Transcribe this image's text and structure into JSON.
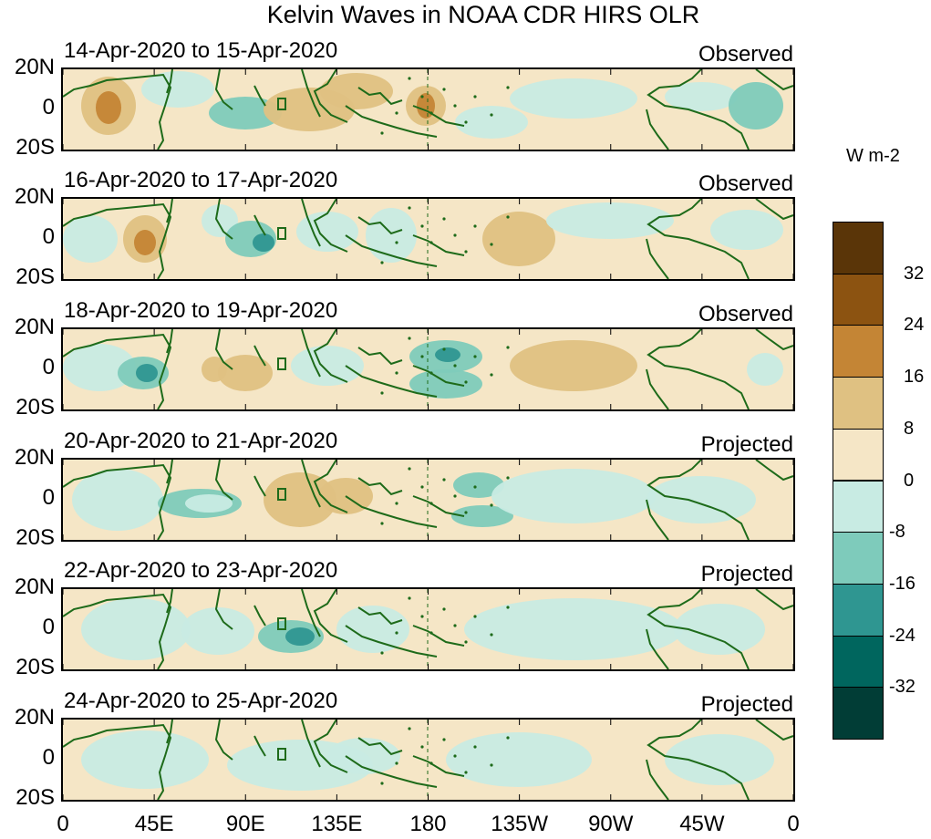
{
  "title": "Kelvin Waves in NOAA CDR HIRS OLR",
  "lat_labels": [
    "20N",
    "0",
    "20S"
  ],
  "lon_labels": [
    "0",
    "45E",
    "90E",
    "135E",
    "180",
    "135W",
    "90W",
    "45W",
    "0"
  ],
  "colorbar": {
    "units": "W m-2",
    "tick_labels": [
      "32",
      "24",
      "16",
      "8",
      "0",
      "-8",
      "-16",
      "-24",
      "-32"
    ],
    "colors": [
      "#5a3508",
      "#8c5311",
      "#c48535",
      "#dfc182",
      "#f5e6c6",
      "#c8ebe3",
      "#7ecbbb",
      "#2f9691",
      "#00665e",
      "#013d36"
    ]
  },
  "panels": [
    {
      "date_range": "14-Apr-2020 to 15-Apr-2020",
      "status": "Observed"
    },
    {
      "date_range": "16-Apr-2020 to 17-Apr-2020",
      "status": "Observed"
    },
    {
      "date_range": "18-Apr-2020 to 19-Apr-2020",
      "status": "Observed"
    },
    {
      "date_range": "20-Apr-2020 to 21-Apr-2020",
      "status": "Projected"
    },
    {
      "date_range": "22-Apr-2020 to 23-Apr-2020",
      "status": "Projected"
    },
    {
      "date_range": "24-Apr-2020 to 25-Apr-2020",
      "status": "Projected"
    }
  ]
}
